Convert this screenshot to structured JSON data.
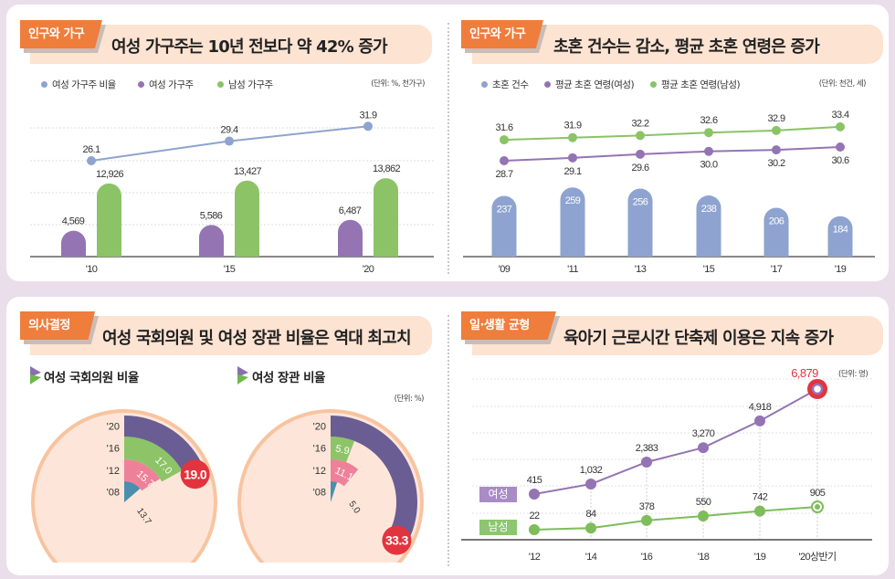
{
  "panels": {
    "households": {
      "tag": "인구와 가구",
      "title": "여성 가구주는 10년 전보다 약 42% 증가"
    },
    "marriage": {
      "tag": "인구와 가구",
      "title": "초혼 건수는 감소, 평균 초혼 연령은 증가"
    },
    "decision": {
      "tag": "의사결정",
      "title": "여성 국회의원 및 여성 장관 비율은 역대 최고치"
    },
    "worklife": {
      "tag": "일·생활 균형",
      "title": "육아기 근로시간 단축제 이용은 지속 증가"
    }
  },
  "colors": {
    "orange_tag": "#ef7d3c",
    "banner": "#fde3d2",
    "purple": "#9474b3",
    "green": "#8cc366",
    "blue": "#8ea3cf",
    "red": "#e2343f",
    "dark_purple": "#695d93",
    "pink": "#ee8199",
    "teal": "#4b8fae"
  },
  "chart_data": [
    {
      "type": "bar+line",
      "categories": [
        "'10",
        "'15",
        "'20"
      ],
      "unit": "(단위: %, 천가구)",
      "series": [
        {
          "name": "여성 가구주 비율",
          "type": "line",
          "color": "#8ea3cf",
          "values": [
            26.1,
            29.4,
            31.9
          ]
        },
        {
          "name": "여성 가구주",
          "type": "bar",
          "color": "#9474b3",
          "values": [
            4569,
            5586,
            6487
          ]
        },
        {
          "name": "남성 가구주",
          "type": "bar",
          "color": "#8cc366",
          "values": [
            12926,
            13427,
            13862
          ]
        }
      ],
      "grid": true,
      "legend": "top-left"
    },
    {
      "type": "bar+line",
      "categories": [
        "'09",
        "'11",
        "'13",
        "'15",
        "'17",
        "'19"
      ],
      "unit": "(단위: 천건, 세)",
      "series": [
        {
          "name": "초혼 건수",
          "type": "bar",
          "color": "#8ea3cf",
          "values": [
            237,
            259,
            256,
            238,
            206,
            184
          ]
        },
        {
          "name": "평균 초혼 연령(여성)",
          "type": "line",
          "color": "#9474b3",
          "values": [
            28.7,
            29.1,
            29.6,
            30.0,
            30.2,
            30.6
          ]
        },
        {
          "name": "평균 초혼 연령(남성)",
          "type": "line",
          "color": "#8cc366",
          "values": [
            31.6,
            31.9,
            32.2,
            32.6,
            32.9,
            33.4
          ]
        }
      ],
      "grid": false,
      "legend": "top-left"
    },
    {
      "type": "radial-bar",
      "unit": "(단위: %)",
      "charts": [
        {
          "title": "여성 국회의원 비율",
          "categories": [
            "'08",
            "'12",
            "'16",
            "'20"
          ],
          "values": [
            13.7,
            15.7,
            17.0,
            19.0
          ]
        },
        {
          "title": "여성 장관 비율",
          "categories": [
            "'08",
            "'12",
            "'16",
            "'20"
          ],
          "values": [
            5.0,
            11.1,
            5.9,
            33.3
          ]
        }
      ],
      "colors": [
        "#4b8fae",
        "#ee8199",
        "#8cc467",
        "#695d93"
      ]
    },
    {
      "type": "line",
      "categories": [
        "'12",
        "'14",
        "'16",
        "'18",
        "'19",
        "'20상반기"
      ],
      "unit": "(단위: 명)",
      "series": [
        {
          "name": "여성",
          "color": "#9474b3",
          "values": [
            415,
            1032,
            2383,
            3270,
            4918,
            6879
          ]
        },
        {
          "name": "남성",
          "color": "#7dbd5a",
          "values": [
            22,
            84,
            378,
            550,
            742,
            905
          ]
        }
      ],
      "highlight": "6,879",
      "grid": true
    }
  ]
}
